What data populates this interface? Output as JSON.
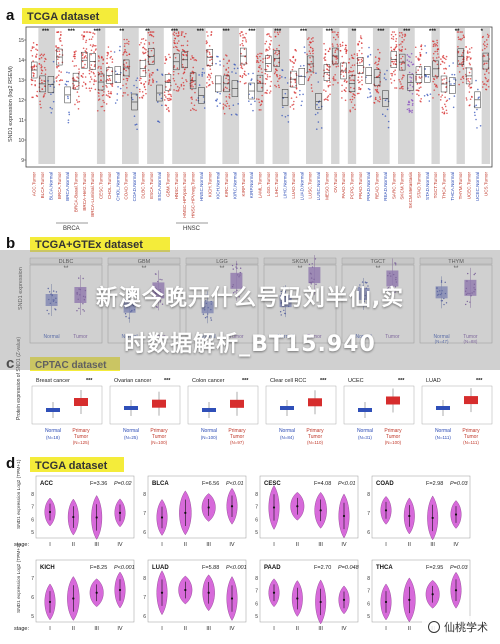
{
  "panel_a": {
    "letter": "a",
    "tag": "TCGA dataset",
    "ylabel": "SND1 expression (log2 RSEM)",
    "ticks": [
      "15",
      "14",
      "13",
      "12",
      "11",
      "10",
      "9"
    ],
    "stars": [
      "***",
      "***",
      "***",
      "**",
      "**",
      "***",
      "***",
      "***",
      "***",
      "***",
      "***",
      "***",
      "**",
      "***",
      "***",
      "***",
      "**",
      "*"
    ],
    "groups": [
      "ACC",
      "BLCA",
      "BLCA",
      "BRCA",
      "BRCA",
      "BRCA",
      "BRCA",
      "BRCA",
      "CESC",
      "CHOL",
      "CHOL",
      "COAD",
      "COAD",
      "DLBC",
      "ESCA",
      "ESCA",
      "GBM",
      "HNSC",
      "HNSC",
      "HNSC",
      "HNSC",
      "KICH",
      "KICH",
      "KIRC",
      "KIRC",
      "KIRP",
      "KIRP",
      "LAML",
      "LGG",
      "LIHC",
      "LIHC",
      "LUAD",
      "LUAD",
      "LUSC",
      "LUSC",
      "MESO",
      "OV",
      "PAAD",
      "PCPG",
      "PRAD",
      "PRAD",
      "READ",
      "READ",
      "SARC",
      "SKCM",
      "SKCM",
      "STAD",
      "STAD",
      "TGCT",
      "THCA",
      "THCA",
      "THYM",
      "UCEC",
      "UCEC",
      "UCS"
    ],
    "labels": [
      "ACC.Tumor",
      "BLCA.Tumor",
      "BLCA.Normal",
      "BRCA.Tumor",
      "BRCA.Normal",
      "BRCA-Basal.Tumor",
      "BRCA-Her2.Tumor",
      "BRCA-Luminal.Tumor",
      "CESC.Tumor",
      "CHOL.Tumor",
      "CHOL.Normal",
      "COAD.Tumor",
      "COAD.Normal",
      "DLBC.Tumor",
      "ESCA.Tumor",
      "ESCA.Normal",
      "GBM.Tumor",
      "HNSC.Tumor",
      "HNSC-HPVpos.Tumor",
      "HNSC-HPVneg.Tumor",
      "HNSC.Normal",
      "KICH.Tumor",
      "KICH.Normal",
      "KIRC.Tumor",
      "KIRC.Normal",
      "KIRP.Tumor",
      "KIRP.Normal",
      "LAML.Tumor",
      "LGG.Tumor",
      "LIHC.Tumor",
      "LIHC.Normal",
      "LUAD.Tumor",
      "LUAD.Normal",
      "LUSC.Tumor",
      "LUSC.Normal",
      "MESO.Tumor",
      "OV.Tumor",
      "PAAD.Tumor",
      "PCPG.Tumor",
      "PRAD.Tumor",
      "PRAD.Normal",
      "READ.Tumor",
      "READ.Normal",
      "SARC.Tumor",
      "SKCM.Tumor",
      "SKCM.Metastasis",
      "STAD.Tumor",
      "STAD.Normal",
      "TGCT.Tumor",
      "THCA.Tumor",
      "THCA.Normal",
      "THYM.Tumor",
      "UCEC.Tumor",
      "UCEC.Normal",
      "UCS.Tumor"
    ],
    "bracket_labels": [
      "BRCA",
      "HNSC"
    ]
  },
  "panel_b": {
    "letter": "b",
    "tag": "TCGA+GTEx dataset",
    "ylabel": "SND1 expression",
    "titles": [
      "DLBC",
      "GBM",
      "LGG",
      "SKCM",
      "TGCT",
      "THYM"
    ],
    "cats": [
      "Normal",
      "Tumor"
    ],
    "sub": [
      "(N=47)",
      "(N=88)"
    ],
    "stars": [
      "**",
      "**",
      "**",
      "**",
      "**",
      "**"
    ]
  },
  "panel_c": {
    "letter": "c",
    "tag": "CPTAC dataset",
    "ylabel": "Protein expression of SND1 (Z-value)",
    "subplots": [
      {
        "title": "Breast cancer",
        "stars": "***",
        "n1": "(N=18)",
        "n2": "(N=125)"
      },
      {
        "title": "Ovarian cancer",
        "stars": "***",
        "n1": "(N=25)",
        "n2": "(N=100)"
      },
      {
        "title": "Colon cancer",
        "stars": "***",
        "n1": "(N=100)",
        "n2": "(N=97)"
      },
      {
        "title": "Clear cell RCC",
        "stars": "***",
        "n1": "(N=84)",
        "n2": "(N=110)"
      },
      {
        "title": "UCEC",
        "stars": "***",
        "n1": "(N=31)",
        "n2": "(N=100)"
      },
      {
        "title": "LUAD",
        "stars": "***",
        "n1": "(N=111)",
        "n2": "(N=111)"
      }
    ],
    "cat1": "Normal",
    "cat2": [
      "Primary",
      "Tumor"
    ]
  },
  "panel_d": {
    "letter": "d",
    "tag": "TCGA dataset",
    "ylabel": "SND1 expression Log2 (TPM+1)",
    "stage_label": "stage:",
    "stages": [
      "I",
      "II",
      "III",
      "IV"
    ],
    "subplots": [
      {
        "title": "ACC",
        "f": "F=3.36",
        "p": "P=0.02",
        "ticks": [
          "8",
          "7",
          "6",
          "5"
        ]
      },
      {
        "title": "BLCA",
        "f": "F=6.56",
        "p": "P<0.01",
        "ticks": [
          "8",
          "7",
          "6"
        ]
      },
      {
        "title": "CESC",
        "f": "F=4.08",
        "p": "P<0.01",
        "ticks": [
          "8",
          "7",
          "6",
          "5"
        ]
      },
      {
        "title": "COAD",
        "f": "F=2.98",
        "p": "P=0.03",
        "ticks": [
          "8",
          "7",
          "6"
        ]
      },
      {
        "title": "KICH",
        "f": "F=8.25",
        "p": "P<0.001",
        "ticks": [
          "7",
          "6",
          "5"
        ]
      },
      {
        "title": "LUAD",
        "f": "F=5.88",
        "p": "P<0.001",
        "ticks": [
          "8",
          "7",
          "6"
        ]
      },
      {
        "title": "PAAD",
        "f": "F=2.70",
        "p": "P=0.048",
        "ticks": [
          "8",
          "7",
          "6",
          "5"
        ]
      },
      {
        "title": "THCA",
        "f": "F=2.95",
        "p": "P=0.03",
        "ticks": [
          "8",
          "7",
          "6",
          "5"
        ]
      }
    ]
  },
  "overlay": {
    "line1": "新澳今晚开什么号码刘半仙,实",
    "line2": "时数据解析_BT15.940"
  },
  "watermark": "仙桃学术",
  "colors": {
    "tumor": "#d62d2d",
    "normal": "#2f4fb8",
    "metastasis": "#8a4fc0",
    "tag_bg": "#f4ec3a",
    "violin": "#d35ad6",
    "stripe": "#d6d6d6",
    "tumor_label": "#c0392b",
    "normal_label": "#2b4bb5"
  }
}
